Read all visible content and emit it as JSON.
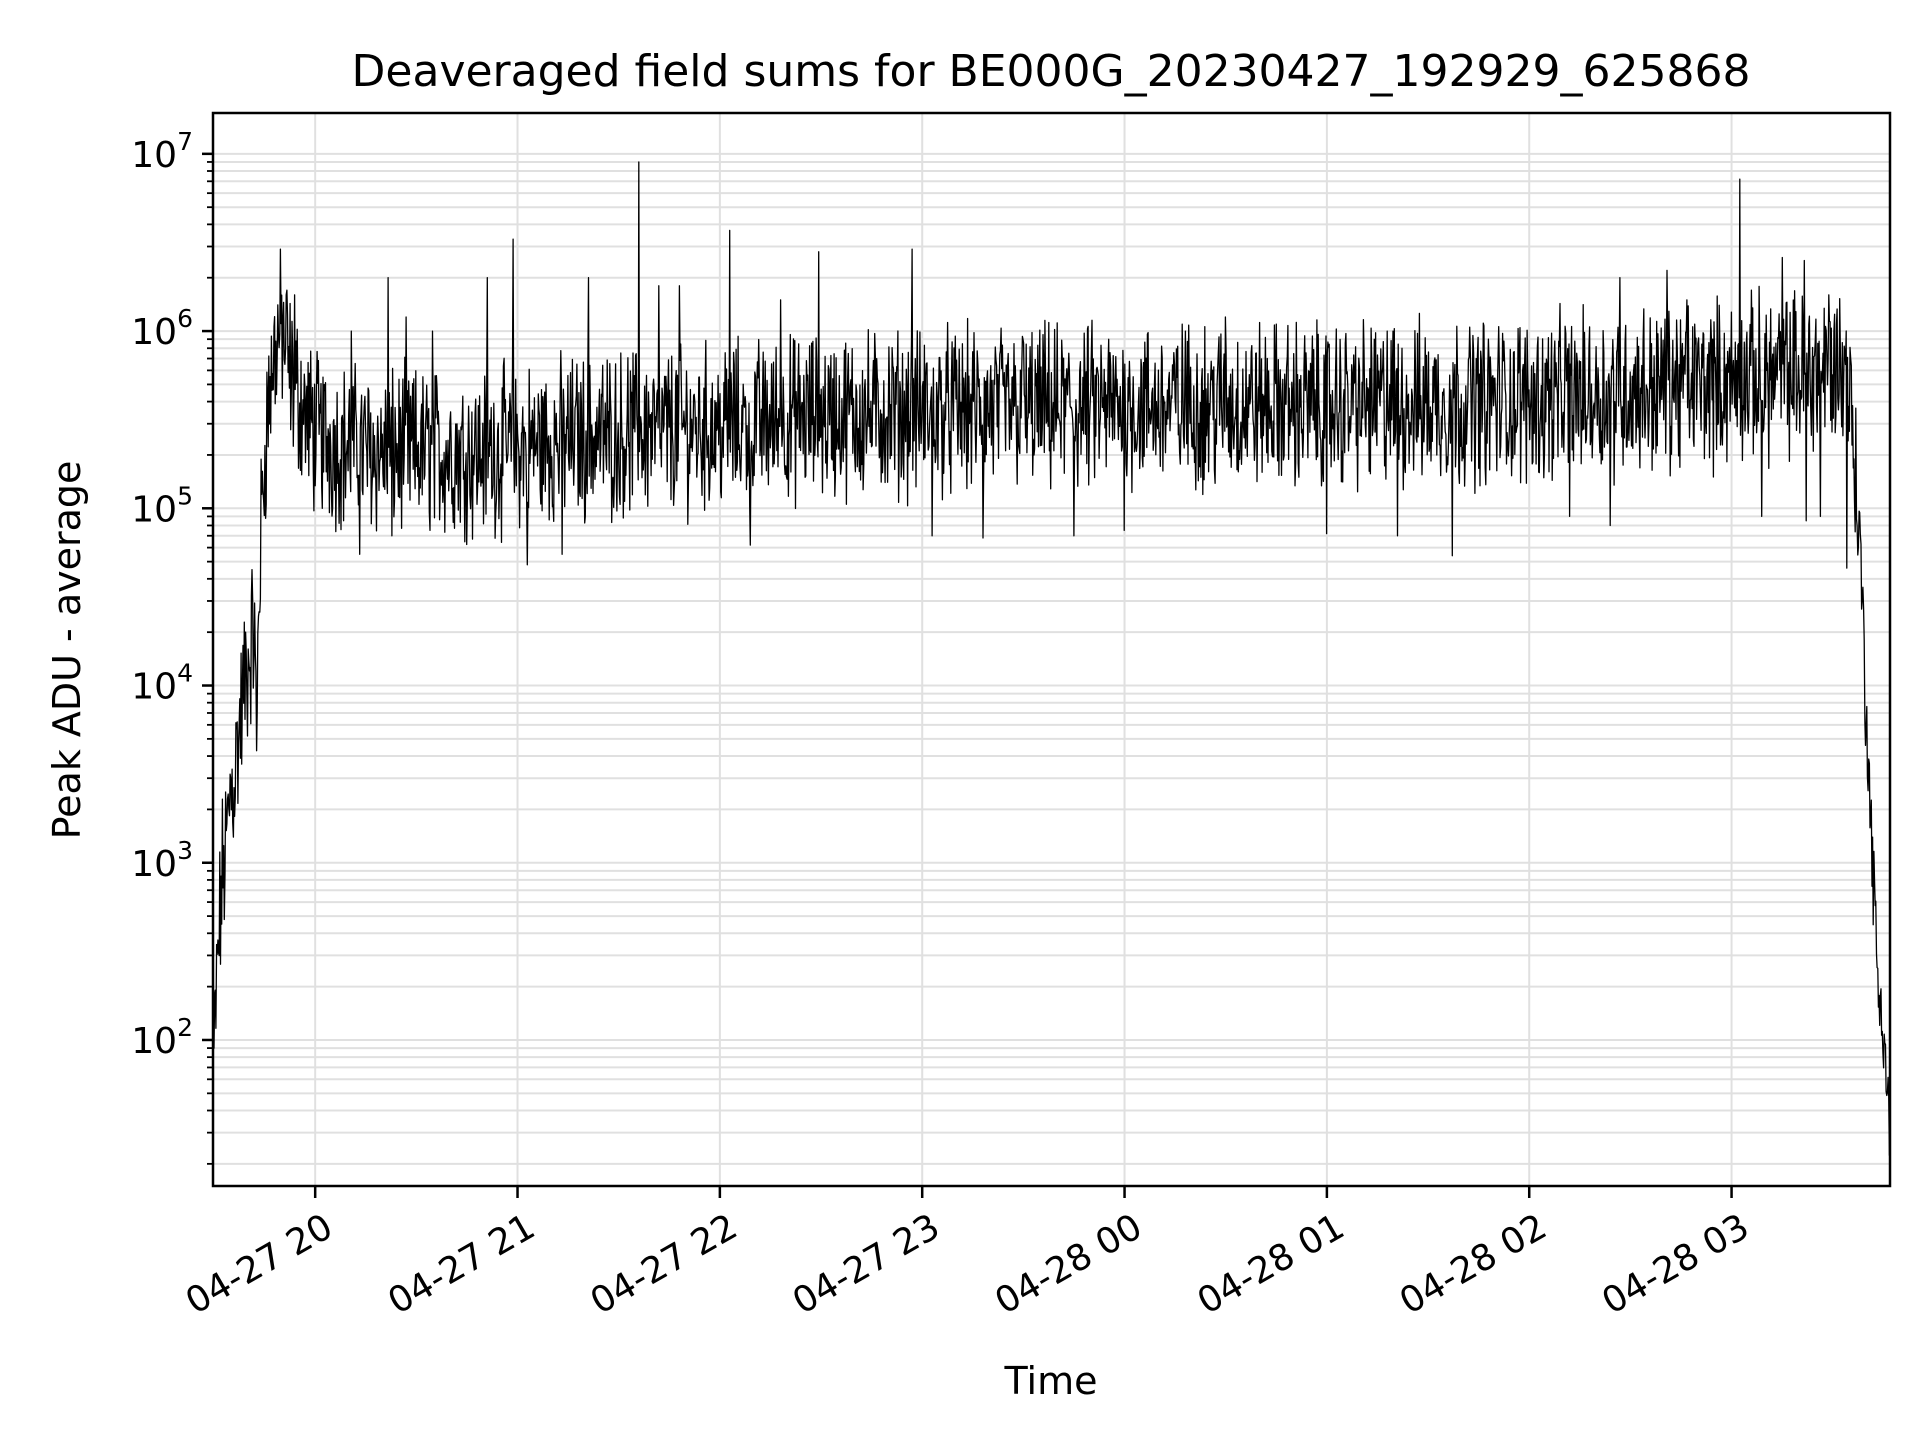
{
  "chart_data": {
    "type": "line",
    "title": "Deaveraged field sums for BE000G_20230427_192929_625868",
    "xlabel": "Time",
    "ylabel": "Peak ADU - average",
    "yscale": "log",
    "grid": true,
    "line_color": "#000000",
    "grid_color": "#e0e0e0",
    "x_unit": "hours since 2023-04-27 00:00",
    "xlim": [
      19.495,
      27.783
    ],
    "ylim": [
      15,
      17000000
    ],
    "x_ticks": [
      {
        "value": 20,
        "label": "04-27 20"
      },
      {
        "value": 21,
        "label": "04-27 21"
      },
      {
        "value": 22,
        "label": "04-27 22"
      },
      {
        "value": 23,
        "label": "04-27 23"
      },
      {
        "value": 24,
        "label": "04-28 00"
      },
      {
        "value": 25,
        "label": "04-28 01"
      },
      {
        "value": 26,
        "label": "04-28 02"
      },
      {
        "value": 27,
        "label": "04-28 03"
      }
    ],
    "y_ticks": [
      {
        "value": 100,
        "base": "10",
        "exp": "2"
      },
      {
        "value": 1000,
        "base": "10",
        "exp": "3"
      },
      {
        "value": 10000,
        "base": "10",
        "exp": "4"
      },
      {
        "value": 100000,
        "base": "10",
        "exp": "5"
      },
      {
        "value": 1000000,
        "base": "10",
        "exp": "6"
      },
      {
        "value": 10000000,
        "base": "10",
        "exp": "7"
      }
    ],
    "series": [
      {
        "envelope": [
          [
            19.5,
            80
          ],
          [
            19.52,
            300
          ],
          [
            19.54,
            800
          ],
          [
            19.56,
            1200
          ],
          [
            19.58,
            2500
          ],
          [
            19.6,
            3000
          ],
          [
            19.62,
            5000
          ],
          [
            19.64,
            8000
          ],
          [
            19.66,
            12000
          ],
          [
            19.68,
            16000
          ],
          [
            19.7,
            22000
          ],
          [
            19.71,
            4000
          ],
          [
            19.72,
            30000
          ],
          [
            19.74,
            120000
          ],
          [
            19.76,
            300000
          ],
          [
            19.78,
            520000
          ],
          [
            19.8,
            750000
          ],
          [
            19.82,
            950000
          ],
          [
            19.84,
            1000000
          ],
          [
            19.86,
            700000
          ],
          [
            19.88,
            550000
          ],
          [
            19.92,
            420000
          ],
          [
            19.96,
            320000
          ],
          [
            20.0,
            270000
          ],
          [
            20.1,
            230000
          ],
          [
            20.3,
            210000
          ],
          [
            20.5,
            210000
          ],
          [
            20.8,
            205000
          ],
          [
            21.0,
            220000
          ],
          [
            21.3,
            250000
          ],
          [
            21.6,
            270000
          ],
          [
            22.0,
            290000
          ],
          [
            22.5,
            330000
          ],
          [
            23.0,
            350000
          ],
          [
            23.5,
            360000
          ],
          [
            24.0,
            370000
          ],
          [
            24.5,
            380000
          ],
          [
            25.0,
            380000
          ],
          [
            25.5,
            390000
          ],
          [
            26.0,
            410000
          ],
          [
            26.5,
            460000
          ],
          [
            26.8,
            500000
          ],
          [
            27.0,
            520000
          ],
          [
            27.2,
            560000
          ],
          [
            27.4,
            600000
          ],
          [
            27.55,
            650000
          ],
          [
            27.58,
            500000
          ],
          [
            27.6,
            300000
          ],
          [
            27.62,
            100000
          ],
          [
            27.64,
            50000
          ],
          [
            27.66,
            10000
          ],
          [
            27.68,
            3000
          ],
          [
            27.7,
            800
          ],
          [
            27.72,
            250
          ],
          [
            27.74,
            150
          ],
          [
            27.76,
            80
          ],
          [
            27.78,
            30
          ]
        ],
        "spikes": [
          [
            19.86,
            1700000
          ],
          [
            19.9,
            1600000
          ],
          [
            20.18,
            1000000
          ],
          [
            20.36,
            2000000
          ],
          [
            20.45,
            1200000
          ],
          [
            20.58,
            1000000
          ],
          [
            20.85,
            2000000
          ],
          [
            20.98,
            3300000
          ],
          [
            21.35,
            2000000
          ],
          [
            21.6,
            9000000
          ],
          [
            21.7,
            1800000
          ],
          [
            21.8,
            1800000
          ],
          [
            22.05,
            3700000
          ],
          [
            22.3,
            1500000
          ],
          [
            22.49,
            2800000
          ],
          [
            22.95,
            2900000
          ],
          [
            23.3,
            1000000
          ],
          [
            23.5,
            900000
          ],
          [
            24.3,
            1000000
          ],
          [
            24.5,
            1200000
          ],
          [
            25.3,
            1000000
          ],
          [
            25.8,
            900000
          ],
          [
            26.2,
            1000000
          ],
          [
            26.45,
            2000000
          ],
          [
            26.68,
            2200000
          ],
          [
            26.78,
            1500000
          ],
          [
            27.04,
            7200000
          ],
          [
            27.25,
            2600000
          ],
          [
            27.36,
            2500000
          ],
          [
            27.48,
            1600000
          ]
        ],
        "dips": [
          [
            20.22,
            55000
          ],
          [
            20.38,
            70000
          ],
          [
            21.05,
            48000
          ],
          [
            21.22,
            55000
          ],
          [
            22.15,
            62000
          ],
          [
            23.05,
            70000
          ],
          [
            23.3,
            68000
          ],
          [
            23.75,
            70000
          ],
          [
            24.0,
            75000
          ],
          [
            25.0,
            72000
          ],
          [
            25.35,
            70000
          ],
          [
            25.62,
            54000
          ],
          [
            26.2,
            90000
          ],
          [
            26.4,
            80000
          ],
          [
            27.15,
            90000
          ],
          [
            27.37,
            85000
          ],
          [
            27.44,
            90000
          ],
          [
            27.57,
            46000
          ]
        ]
      }
    ]
  }
}
